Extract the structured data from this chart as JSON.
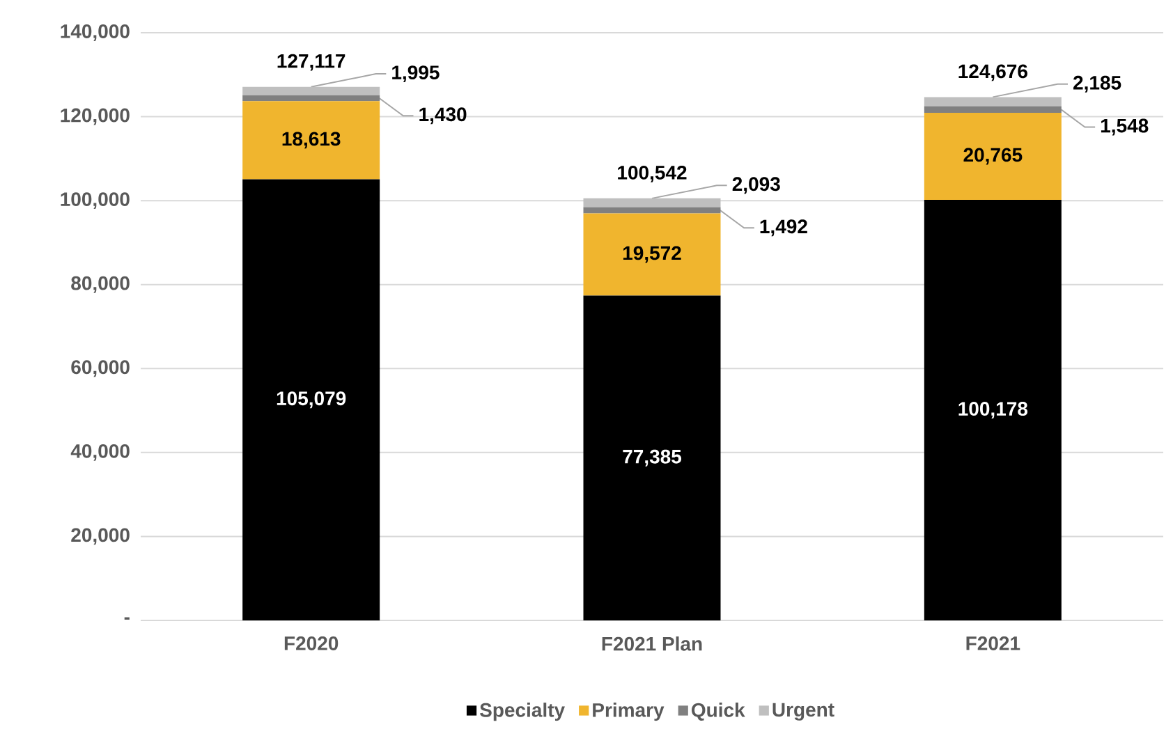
{
  "chart_data": {
    "type": "bar",
    "stacked": true,
    "categories": [
      "F2020",
      "F2021 Plan",
      "F2021"
    ],
    "series": [
      {
        "name": "Specialty",
        "color": "#000000",
        "values": [
          105079,
          77385,
          100178
        ],
        "value_labels": [
          "105,079",
          "77,385",
          "100,178"
        ]
      },
      {
        "name": "Primary",
        "color": "#f0b52e",
        "values": [
          18613,
          19572,
          20765
        ],
        "value_labels": [
          "18,613",
          "19,572",
          "20,765"
        ]
      },
      {
        "name": "Quick",
        "color": "#808080",
        "values": [
          1430,
          1492,
          1548
        ],
        "value_labels": [
          "1,430",
          "1,492",
          "1,548"
        ]
      },
      {
        "name": "Urgent",
        "color": "#bfbfbf",
        "values": [
          1995,
          2093,
          2185
        ],
        "value_labels": [
          "1,995",
          "2,093",
          "2,185"
        ]
      }
    ],
    "totals": [
      "127,117",
      "100,542",
      "124,676"
    ],
    "ylim": [
      0,
      140000
    ],
    "yticks": [
      {
        "value": 0,
        "label": "-"
      },
      {
        "value": 20000,
        "label": "20,000"
      },
      {
        "value": 40000,
        "label": "40,000"
      },
      {
        "value": 60000,
        "label": "60,000"
      },
      {
        "value": 80000,
        "label": "80,000"
      },
      {
        "value": 100000,
        "label": "100,000"
      },
      {
        "value": 120000,
        "label": "120,000"
      },
      {
        "value": 140000,
        "label": "140,000"
      }
    ],
    "grid": "y",
    "legend": "bottom"
  }
}
